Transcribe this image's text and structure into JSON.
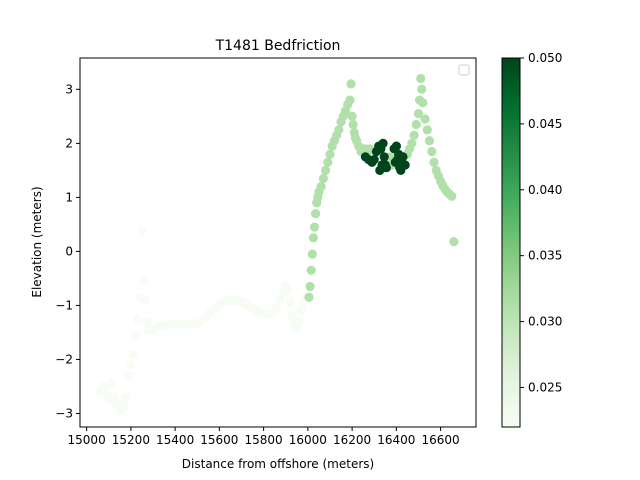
{
  "chart_data": {
    "type": "scatter",
    "title": "T1481 Bedfriction",
    "xlabel": "Distance from offshore (meters)",
    "ylabel": "Elevation (meters)",
    "xlim": [
      14970,
      16760
    ],
    "ylim": [
      -3.25,
      3.58
    ],
    "xticks": [
      15000,
      15200,
      15400,
      15600,
      15800,
      16000,
      16200,
      16400,
      16600
    ],
    "yticks": [
      -3,
      -2,
      -1,
      0,
      1,
      2,
      3
    ],
    "grid": false,
    "legend": "top-right",
    "legend_entries": [],
    "colorbar": {
      "min": 0.022,
      "max": 0.05,
      "ticks": [
        0.025,
        0.03,
        0.035,
        0.04,
        0.045,
        0.05
      ],
      "tick_labels": [
        "0.025",
        "0.030",
        "0.035",
        "0.040",
        "0.045",
        "0.050"
      ],
      "cmap": "Greens",
      "stops": [
        "#f7fcf5",
        "#e5f5e0",
        "#c7e9c0",
        "#a1d99b",
        "#74c476",
        "#41ab5d",
        "#238b45",
        "#006d2c",
        "#00441b"
      ]
    },
    "series": [
      {
        "c": 0.022,
        "points": [
          [
            15060,
            -2.6
          ],
          [
            15075,
            -2.5
          ],
          [
            15090,
            -2.65
          ],
          [
            15100,
            -2.75
          ],
          [
            15110,
            -2.45
          ],
          [
            15120,
            -2.7
          ],
          [
            15130,
            -2.8
          ],
          [
            15140,
            -2.85
          ],
          [
            15150,
            -2.95
          ],
          [
            15160,
            -2.9
          ],
          [
            15170,
            -2.85
          ],
          [
            15180,
            -2.7
          ],
          [
            15190,
            -2.3
          ],
          [
            15200,
            -2.1
          ],
          [
            15210,
            -1.9
          ],
          [
            15220,
            -1.55
          ],
          [
            15230,
            -1.25
          ],
          [
            15240,
            -0.85
          ],
          [
            15250,
            0.38
          ],
          [
            15260,
            -0.55
          ],
          [
            15265,
            -0.9
          ],
          [
            15272,
            -1.3
          ],
          [
            15280,
            -1.45
          ],
          [
            15300,
            -1.45
          ],
          [
            15320,
            -1.4
          ],
          [
            15340,
            -1.38
          ],
          [
            15360,
            -1.36
          ],
          [
            15380,
            -1.35
          ],
          [
            15400,
            -1.35
          ],
          [
            15420,
            -1.35
          ],
          [
            15440,
            -1.35
          ],
          [
            15460,
            -1.35
          ],
          [
            15480,
            -1.34
          ],
          [
            15500,
            -1.33
          ],
          [
            15520,
            -1.28
          ],
          [
            15540,
            -1.2
          ],
          [
            15560,
            -1.12
          ],
          [
            15580,
            -1.05
          ],
          [
            15600,
            -0.98
          ],
          [
            15620,
            -0.94
          ],
          [
            15640,
            -0.91
          ],
          [
            15660,
            -0.9
          ],
          [
            15680,
            -0.91
          ],
          [
            15700,
            -0.94
          ],
          [
            15720,
            -0.98
          ],
          [
            15740,
            -1.03
          ],
          [
            15760,
            -1.08
          ],
          [
            15780,
            -1.12
          ],
          [
            15800,
            -1.15
          ],
          [
            15820,
            -1.17
          ],
          [
            15840,
            -1.15
          ],
          [
            15860,
            -1.05
          ],
          [
            15875,
            -0.9
          ],
          [
            15890,
            -0.75
          ],
          [
            15900,
            -0.65
          ],
          [
            15910,
            -0.72
          ],
          [
            15920,
            -0.95
          ],
          [
            15930,
            -1.2
          ],
          [
            15940,
            -1.35
          ],
          [
            15950,
            -1.4
          ],
          [
            15960,
            -1.3
          ],
          [
            15970,
            -1.1
          ],
          [
            15980,
            -0.95
          ],
          [
            15990,
            -0.85
          ],
          [
            16000,
            -0.8
          ]
        ]
      },
      {
        "c": 0.031,
        "points": [
          [
            16005,
            -0.85
          ],
          [
            16010,
            -0.65
          ],
          [
            16015,
            -0.35
          ],
          [
            16020,
            -0.05
          ],
          [
            16025,
            0.25
          ],
          [
            16030,
            0.45
          ],
          [
            16035,
            0.7
          ],
          [
            16040,
            0.9
          ],
          [
            16045,
            1.0
          ],
          [
            16050,
            1.1
          ],
          [
            16060,
            1.2
          ],
          [
            16070,
            1.35
          ],
          [
            16080,
            1.5
          ],
          [
            16090,
            1.65
          ],
          [
            16100,
            1.8
          ],
          [
            16110,
            1.95
          ],
          [
            16120,
            2.05
          ],
          [
            16130,
            2.15
          ],
          [
            16140,
            2.25
          ],
          [
            16150,
            2.4
          ],
          [
            16160,
            2.5
          ],
          [
            16170,
            2.6
          ],
          [
            16180,
            2.72
          ],
          [
            16190,
            2.8
          ],
          [
            16195,
            3.1
          ],
          [
            16200,
            2.5
          ],
          [
            16205,
            2.35
          ],
          [
            16210,
            2.2
          ],
          [
            16215,
            2.1
          ],
          [
            16220,
            2.05
          ],
          [
            16230,
            1.95
          ],
          [
            16240,
            1.85
          ],
          [
            16250,
            1.85
          ],
          [
            16260,
            1.9
          ],
          [
            16270,
            1.85
          ],
          [
            16280,
            1.9
          ],
          [
            16360,
            1.7
          ],
          [
            16370,
            1.75
          ],
          [
            16380,
            1.6
          ],
          [
            16450,
            1.8
          ],
          [
            16460,
            1.9
          ],
          [
            16470,
            2.0
          ],
          [
            16480,
            2.15
          ],
          [
            16490,
            2.35
          ],
          [
            16500,
            2.55
          ],
          [
            16505,
            2.8
          ],
          [
            16510,
            3.2
          ],
          [
            16515,
            3.0
          ],
          [
            16520,
            2.75
          ],
          [
            16530,
            2.45
          ],
          [
            16540,
            2.25
          ],
          [
            16550,
            2.05
          ],
          [
            16560,
            1.85
          ],
          [
            16570,
            1.65
          ],
          [
            16580,
            1.5
          ],
          [
            16590,
            1.4
          ],
          [
            16600,
            1.3
          ],
          [
            16610,
            1.22
          ],
          [
            16620,
            1.15
          ],
          [
            16630,
            1.1
          ],
          [
            16640,
            1.06
          ],
          [
            16650,
            1.02
          ],
          [
            16660,
            0.18
          ]
        ]
      },
      {
        "c": 0.05,
        "points": [
          [
            16260,
            1.75
          ],
          [
            16275,
            1.7
          ],
          [
            16290,
            1.65
          ],
          [
            16300,
            1.7
          ],
          [
            16310,
            1.85
          ],
          [
            16320,
            1.95
          ],
          [
            16330,
            1.9
          ],
          [
            16340,
            2.0
          ],
          [
            16345,
            1.75
          ],
          [
            16335,
            1.6
          ],
          [
            16350,
            1.6
          ],
          [
            16325,
            1.5
          ],
          [
            16355,
            1.55
          ],
          [
            16390,
            1.9
          ],
          [
            16395,
            1.65
          ],
          [
            16400,
            1.95
          ],
          [
            16405,
            1.7
          ],
          [
            16410,
            1.8
          ],
          [
            16415,
            1.55
          ],
          [
            16420,
            1.5
          ],
          [
            16425,
            1.6
          ],
          [
            16430,
            1.75
          ],
          [
            16440,
            1.6
          ]
        ]
      }
    ]
  }
}
